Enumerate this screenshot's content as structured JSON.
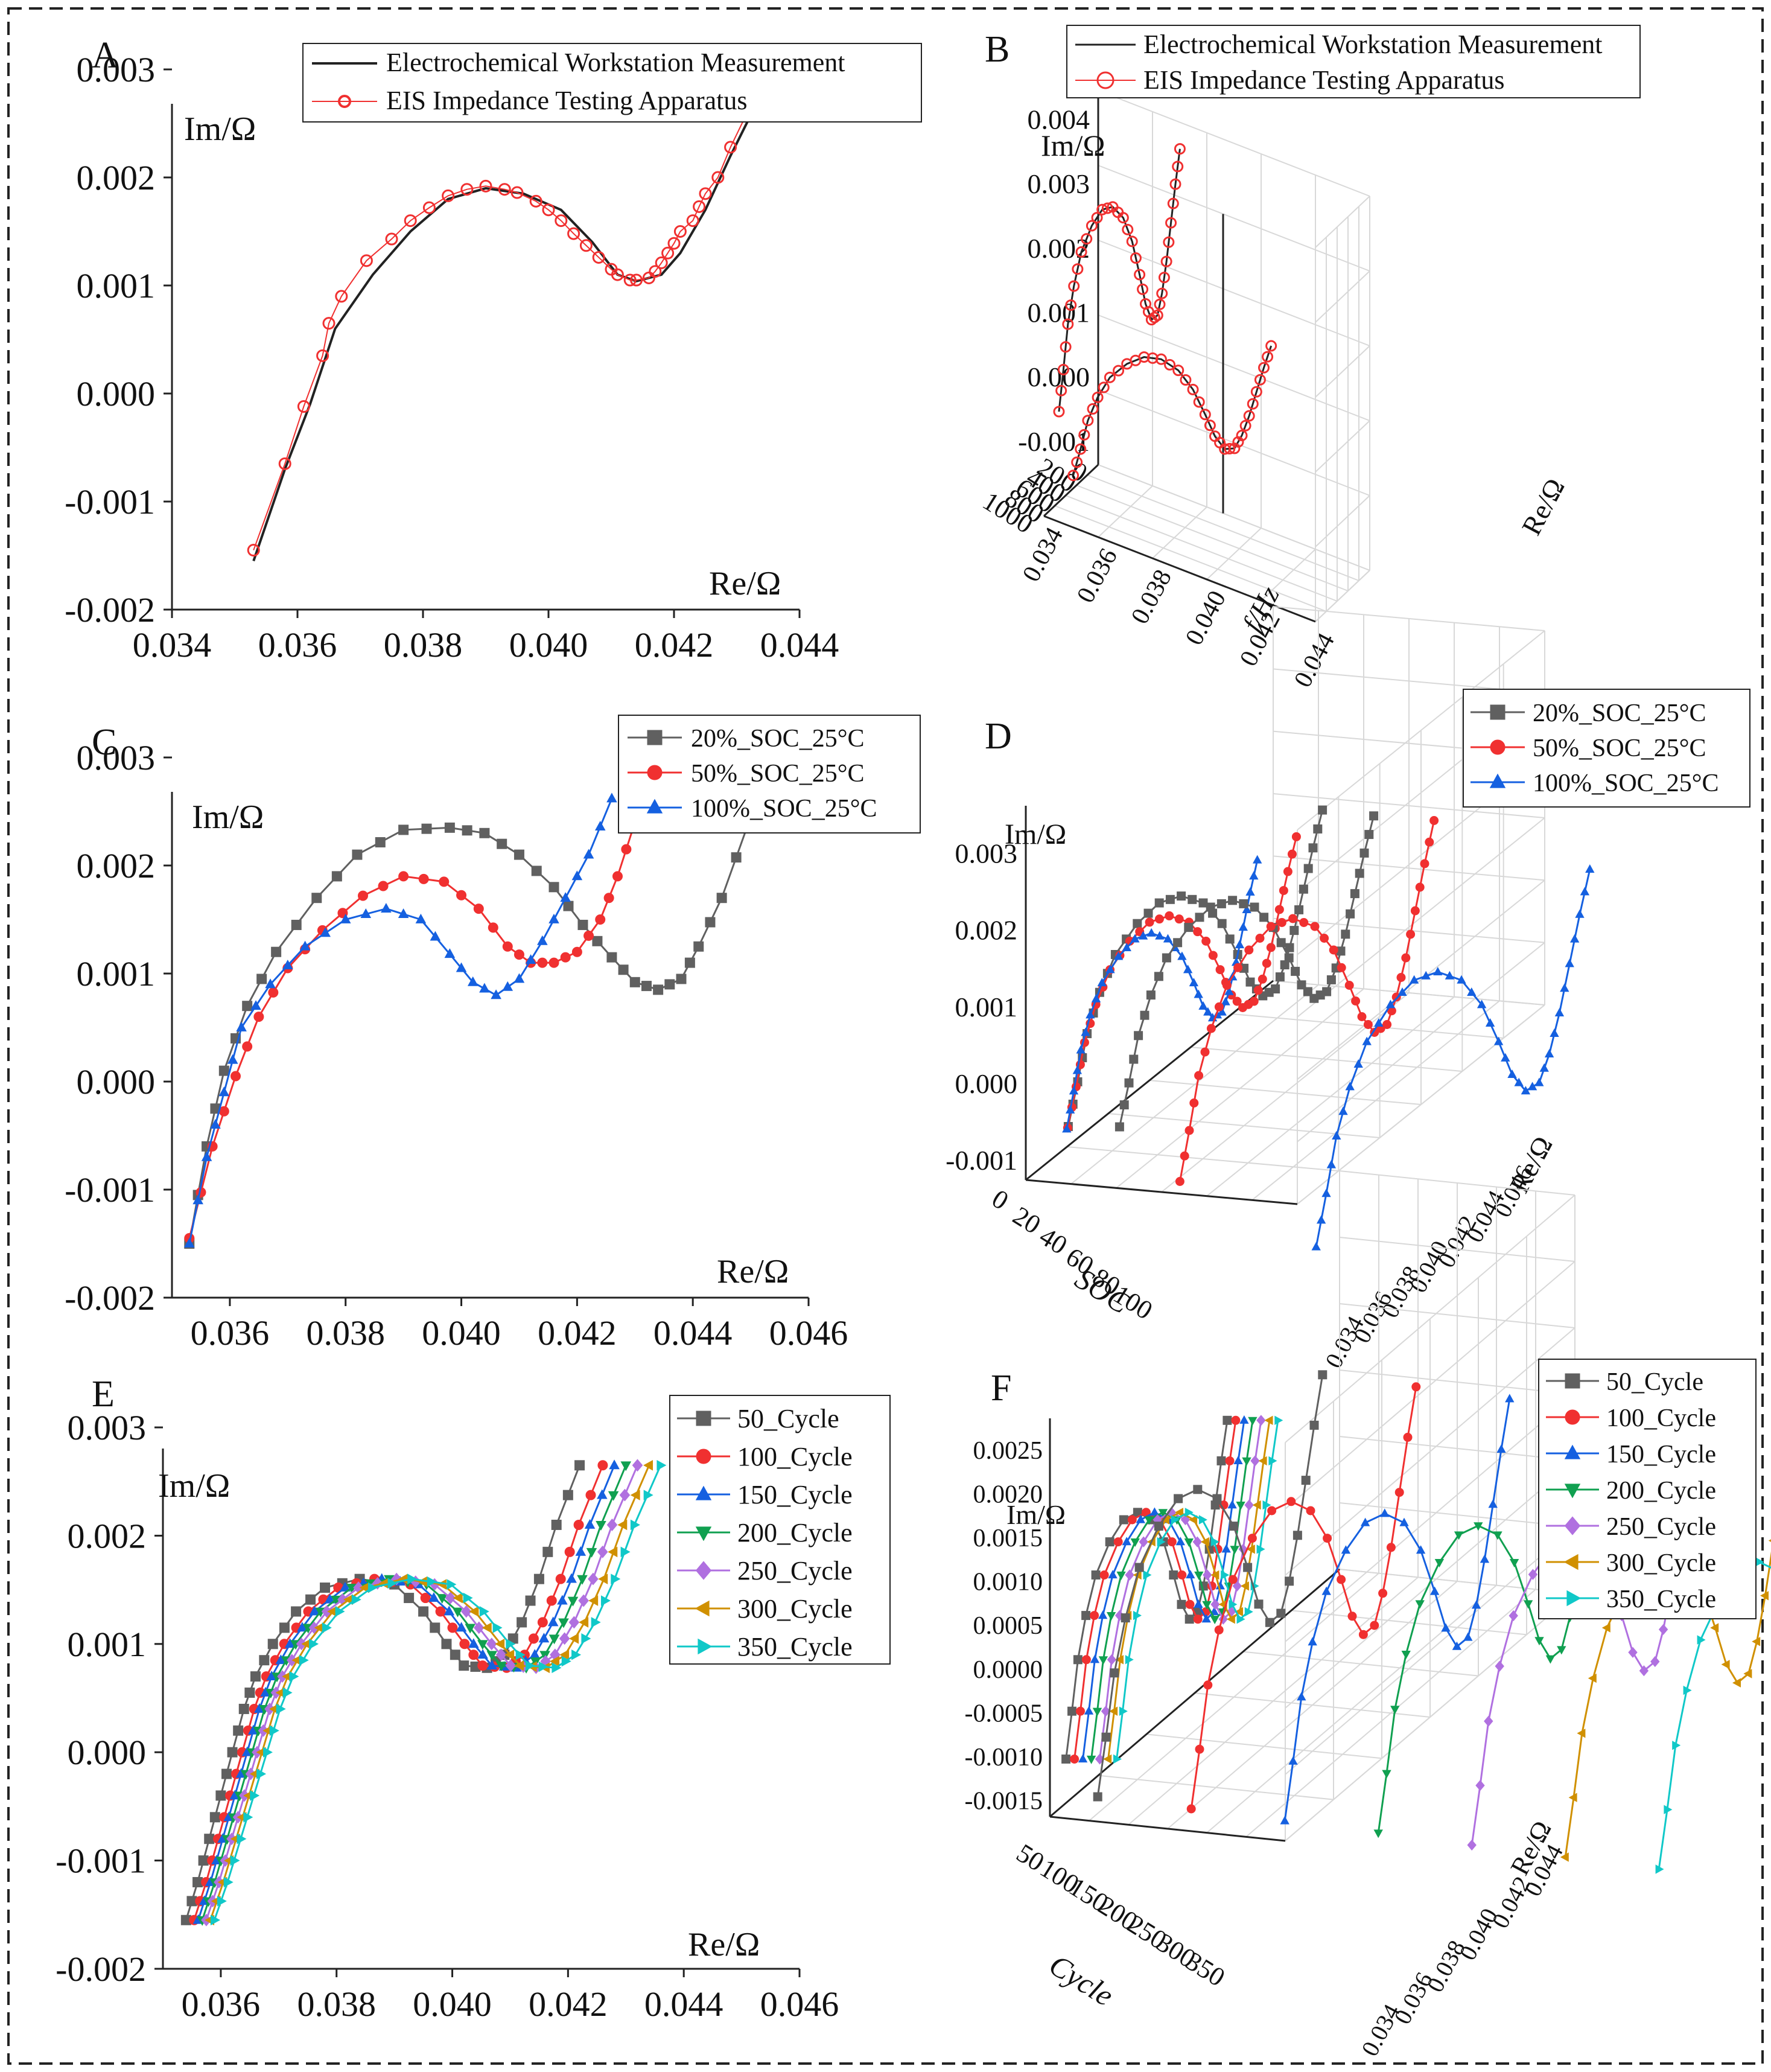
{
  "colors": {
    "black": "#222222",
    "red": "#f03030",
    "gray": "#606060",
    "blue": "#1560e0",
    "green": "#10a050",
    "purple": "#b070e0",
    "orange": "#d09000",
    "cyan": "#10c8c8",
    "grid3d": "#d8d8d8"
  },
  "chart_data": [
    {
      "panel_label": "A",
      "type": "line",
      "ylabel": "Im/Ω",
      "xlabel": "Re/Ω",
      "xlim": [
        0.034,
        0.044
      ],
      "ylim": [
        -0.002,
        0.003
      ],
      "xticks": [
        "0.034",
        "0.036",
        "0.038",
        "0.040",
        "0.042",
        "0.044"
      ],
      "yticks": [
        "-0.002",
        "-0.001",
        "0.000",
        "0.001",
        "0.002",
        "0.003"
      ],
      "legend_position": "top-right",
      "series": [
        {
          "name": "Electrochemical Workstation Measurement",
          "style": "line",
          "color": "#222222",
          "points": [
            [
              0.0353,
              -0.00155
            ],
            [
              0.0358,
              -0.0007
            ],
            [
              0.0362,
              -0.0001
            ],
            [
              0.0366,
              0.0006
            ],
            [
              0.0372,
              0.0011
            ],
            [
              0.0378,
              0.0015
            ],
            [
              0.0384,
              0.0018
            ],
            [
              0.039,
              0.0019
            ],
            [
              0.0396,
              0.00185
            ],
            [
              0.0402,
              0.0017
            ],
            [
              0.0407,
              0.0014
            ],
            [
              0.0411,
              0.0011
            ],
            [
              0.0414,
              0.00104
            ],
            [
              0.0418,
              0.0011
            ],
            [
              0.0421,
              0.0013
            ],
            [
              0.0425,
              0.0017
            ],
            [
              0.0429,
              0.0022
            ],
            [
              0.0435,
              0.0029
            ]
          ]
        },
        {
          "name": "EIS Impedance Testing Apparatus",
          "style": "line+open-circle",
          "color": "#f03030",
          "points": [
            [
              0.0353,
              -0.00145
            ],
            [
              0.0358,
              -0.00065
            ],
            [
              0.0361,
              -0.00012
            ],
            [
              0.0364,
              0.00035
            ],
            [
              0.0365,
              0.00065
            ],
            [
              0.0367,
              0.0009
            ],
            [
              0.0371,
              0.00123
            ],
            [
              0.0375,
              0.00143
            ],
            [
              0.0378,
              0.0016
            ],
            [
              0.0381,
              0.00172
            ],
            [
              0.0384,
              0.00183
            ],
            [
              0.0387,
              0.00189
            ],
            [
              0.039,
              0.00192
            ],
            [
              0.0393,
              0.00189
            ],
            [
              0.0395,
              0.00186
            ],
            [
              0.0398,
              0.00178
            ],
            [
              0.04,
              0.0017
            ],
            [
              0.0402,
              0.0016
            ],
            [
              0.0404,
              0.00148
            ],
            [
              0.0406,
              0.00137
            ],
            [
              0.0408,
              0.00126
            ],
            [
              0.041,
              0.00115
            ],
            [
              0.0411,
              0.0011
            ],
            [
              0.0413,
              0.00105
            ],
            [
              0.0414,
              0.00105
            ],
            [
              0.0416,
              0.00107
            ],
            [
              0.0417,
              0.00113
            ],
            [
              0.0418,
              0.00121
            ],
            [
              0.0419,
              0.0013
            ],
            [
              0.042,
              0.00139
            ],
            [
              0.0421,
              0.0015
            ],
            [
              0.0423,
              0.0016
            ],
            [
              0.0424,
              0.00173
            ],
            [
              0.0425,
              0.00185
            ],
            [
              0.0427,
              0.002
            ],
            [
              0.0429,
              0.00228
            ],
            [
              0.0435,
              0.003
            ]
          ]
        }
      ]
    },
    {
      "panel_label": "B",
      "type": "line3d",
      "ylabel": "Im/Ω",
      "xlabel": "Re/Ω",
      "zlabel": "f/Hz",
      "x_ticks": [
        "0.034",
        "0.036",
        "0.038",
        "0.040",
        "0.042",
        "0.044"
      ],
      "y_ticks": [
        "-0.001",
        "0.000",
        "0.001",
        "0.002",
        "0.003",
        "0.004"
      ],
      "z_ticks": [
        "0",
        "200",
        "400",
        "600",
        "800",
        "1000"
      ],
      "legend_position": "top",
      "series": [
        {
          "name": "Electrochemical Workstation Measurement",
          "style": "line",
          "color": "#222222"
        },
        {
          "name": "EIS Impedance Testing Apparatus",
          "style": "line+open-circle",
          "color": "#f03030"
        }
      ]
    },
    {
      "panel_label": "C",
      "type": "line",
      "ylabel": "Im/Ω",
      "xlabel": "Re/Ω",
      "xlim": [
        0.035,
        0.046
      ],
      "ylim": [
        -0.002,
        0.003
      ],
      "xticks": [
        "0.036",
        "0.038",
        "0.040",
        "0.042",
        "0.044",
        "0.046"
      ],
      "yticks": [
        "-0.002",
        "-0.001",
        "0.000",
        "0.001",
        "0.002",
        "0.003"
      ],
      "legend_position": "top-right",
      "series": [
        {
          "name": "20%_SOC_25°C",
          "marker": "square",
          "color": "#606060",
          "points": [
            [
              0.0353,
              -0.0015
            ],
            [
              0.0356,
              -0.0006
            ],
            [
              0.0359,
              0.0001
            ],
            [
              0.0363,
              0.0007
            ],
            [
              0.0368,
              0.0012
            ],
            [
              0.0375,
              0.0017
            ],
            [
              0.0382,
              0.0021
            ],
            [
              0.039,
              0.00233
            ],
            [
              0.0398,
              0.00235
            ],
            [
              0.0404,
              0.0023
            ],
            [
              0.041,
              0.0021
            ],
            [
              0.0416,
              0.0018
            ],
            [
              0.0421,
              0.00145
            ],
            [
              0.0426,
              0.00115
            ],
            [
              0.043,
              0.00092
            ],
            [
              0.0434,
              0.00085
            ],
            [
              0.0438,
              0.00095
            ],
            [
              0.0441,
              0.00125
            ],
            [
              0.0445,
              0.0017
            ],
            [
              0.045,
              0.00245
            ]
          ]
        },
        {
          "name": "50%_SOC_25°C",
          "marker": "circle",
          "color": "#f03030",
          "points": [
            [
              0.0353,
              -0.00145
            ],
            [
              0.0357,
              -0.0006
            ],
            [
              0.0361,
              5e-05
            ],
            [
              0.0365,
              0.0006
            ],
            [
              0.037,
              0.00105
            ],
            [
              0.0376,
              0.0014
            ],
            [
              0.0383,
              0.00172
            ],
            [
              0.039,
              0.0019
            ],
            [
              0.0397,
              0.00185
            ],
            [
              0.0403,
              0.0016
            ],
            [
              0.0408,
              0.00125
            ],
            [
              0.0412,
              0.0011
            ],
            [
              0.0416,
              0.0011
            ],
            [
              0.042,
              0.0012
            ],
            [
              0.0424,
              0.0015
            ],
            [
              0.0427,
              0.0019
            ],
            [
              0.043,
              0.0024
            ],
            [
              0.0434,
              0.003
            ]
          ]
        },
        {
          "name": "100%_SOC_25°C",
          "marker": "triangle",
          "color": "#1560e0",
          "points": [
            [
              0.0353,
              -0.0015
            ],
            [
              0.0356,
              -0.0007
            ],
            [
              0.0359,
              -0.0001
            ],
            [
              0.0362,
              0.0005
            ],
            [
              0.0367,
              0.0009
            ],
            [
              0.0373,
              0.00125
            ],
            [
              0.038,
              0.0015
            ],
            [
              0.0387,
              0.0016
            ],
            [
              0.0393,
              0.0015
            ],
            [
              0.0398,
              0.00118
            ],
            [
              0.0402,
              0.00092
            ],
            [
              0.0406,
              0.0008
            ],
            [
              0.041,
              0.00095
            ],
            [
              0.0414,
              0.0013
            ],
            [
              0.0418,
              0.0017
            ],
            [
              0.0422,
              0.0021
            ],
            [
              0.0426,
              0.00262
            ]
          ]
        }
      ]
    },
    {
      "panel_label": "D",
      "type": "line3d",
      "ylabel": "Im/Ω",
      "xlabel": "Re/Ω",
      "zlabel": "SOC",
      "x_ticks": [
        "0.034",
        "0.036",
        "0.038",
        "0.040",
        "0.042",
        "0.044",
        "0.046"
      ],
      "y_ticks": [
        "-0.001",
        "0.000",
        "0.001",
        "0.002",
        "0.003"
      ],
      "z_ticks": [
        "0",
        "20",
        "40",
        "60",
        "80",
        "100"
      ],
      "legend_position": "top-right",
      "series": [
        {
          "name": "20%_SOC_25°C",
          "marker": "square",
          "color": "#606060"
        },
        {
          "name": "50%_SOC_25°C",
          "marker": "circle",
          "color": "#f03030"
        },
        {
          "name": "100%_SOC_25°C",
          "marker": "triangle",
          "color": "#1560e0"
        }
      ]
    },
    {
      "panel_label": "E",
      "type": "line",
      "ylabel": "Im/Ω",
      "xlabel": "Re/Ω",
      "xlim": [
        0.035,
        0.046
      ],
      "ylim": [
        -0.002,
        0.003
      ],
      "xticks": [
        "0.036",
        "0.038",
        "0.040",
        "0.042",
        "0.044",
        "0.046"
      ],
      "yticks": [
        "-0.002",
        "-0.001",
        "0.000",
        "0.001",
        "0.002",
        "0.003"
      ],
      "legend_position": "top-right",
      "series_shift": [
        0,
        0.0004,
        0.0006,
        0.0008,
        0.001,
        0.0012,
        0.0014
      ],
      "base_points": [
        [
          0.0354,
          -0.00155
        ],
        [
          0.0356,
          -0.0012
        ],
        [
          0.0358,
          -0.0008
        ],
        [
          0.036,
          -0.0004
        ],
        [
          0.0362,
          0.0
        ],
        [
          0.0364,
          0.0004
        ],
        [
          0.0366,
          0.0007
        ],
        [
          0.0369,
          0.001
        ],
        [
          0.0373,
          0.0013
        ],
        [
          0.0378,
          0.00152
        ],
        [
          0.0384,
          0.0016
        ],
        [
          0.039,
          0.00155
        ],
        [
          0.0395,
          0.0013
        ],
        [
          0.0399,
          0.001
        ],
        [
          0.0402,
          0.0008
        ],
        [
          0.0406,
          0.00078
        ],
        [
          0.0409,
          0.0009
        ],
        [
          0.0412,
          0.0012
        ],
        [
          0.0415,
          0.0016
        ],
        [
          0.0418,
          0.0021
        ],
        [
          0.0422,
          0.00265
        ]
      ],
      "series": [
        {
          "name": "50_Cycle",
          "marker": "square",
          "color": "#606060"
        },
        {
          "name": "100_Cycle",
          "marker": "circle",
          "color": "#f03030"
        },
        {
          "name": "150_Cycle",
          "marker": "triangle",
          "color": "#1560e0"
        },
        {
          "name": "200_Cycle",
          "marker": "triangle-down",
          "color": "#10a050"
        },
        {
          "name": "250_Cycle",
          "marker": "diamond",
          "color": "#b070e0"
        },
        {
          "name": "300_Cycle",
          "marker": "triangle-left",
          "color": "#d09000"
        },
        {
          "name": "350_Cycle",
          "marker": "triangle-right",
          "color": "#10c8c8"
        }
      ]
    },
    {
      "panel_label": "F",
      "type": "line3d",
      "ylabel": "Im/Ω",
      "xlabel": "Re/Ω",
      "zlabel": "Cycle",
      "x_ticks": [
        "0.034",
        "0.036",
        "0.038",
        "0.040",
        "0.042",
        "0.044"
      ],
      "y_ticks": [
        "-0.0015",
        "-0.0010",
        "-0.0005",
        "0.0000",
        "0.0005",
        "0.0010",
        "0.0015",
        "0.0020",
        "0.0025"
      ],
      "z_ticks": [
        "50",
        "100",
        "150",
        "200",
        "250",
        "300",
        "350"
      ],
      "legend_position": "top-right",
      "series": [
        {
          "name": "50_Cycle",
          "marker": "square",
          "color": "#606060"
        },
        {
          "name": "100_Cycle",
          "marker": "circle",
          "color": "#f03030"
        },
        {
          "name": "150_Cycle",
          "marker": "triangle",
          "color": "#1560e0"
        },
        {
          "name": "200_Cycle",
          "marker": "triangle-down",
          "color": "#10a050"
        },
        {
          "name": "250_Cycle",
          "marker": "diamond",
          "color": "#b070e0"
        },
        {
          "name": "300_Cycle",
          "marker": "triangle-left",
          "color": "#d09000"
        },
        {
          "name": "350_Cycle",
          "marker": "triangle-right",
          "color": "#10c8c8"
        }
      ]
    }
  ]
}
